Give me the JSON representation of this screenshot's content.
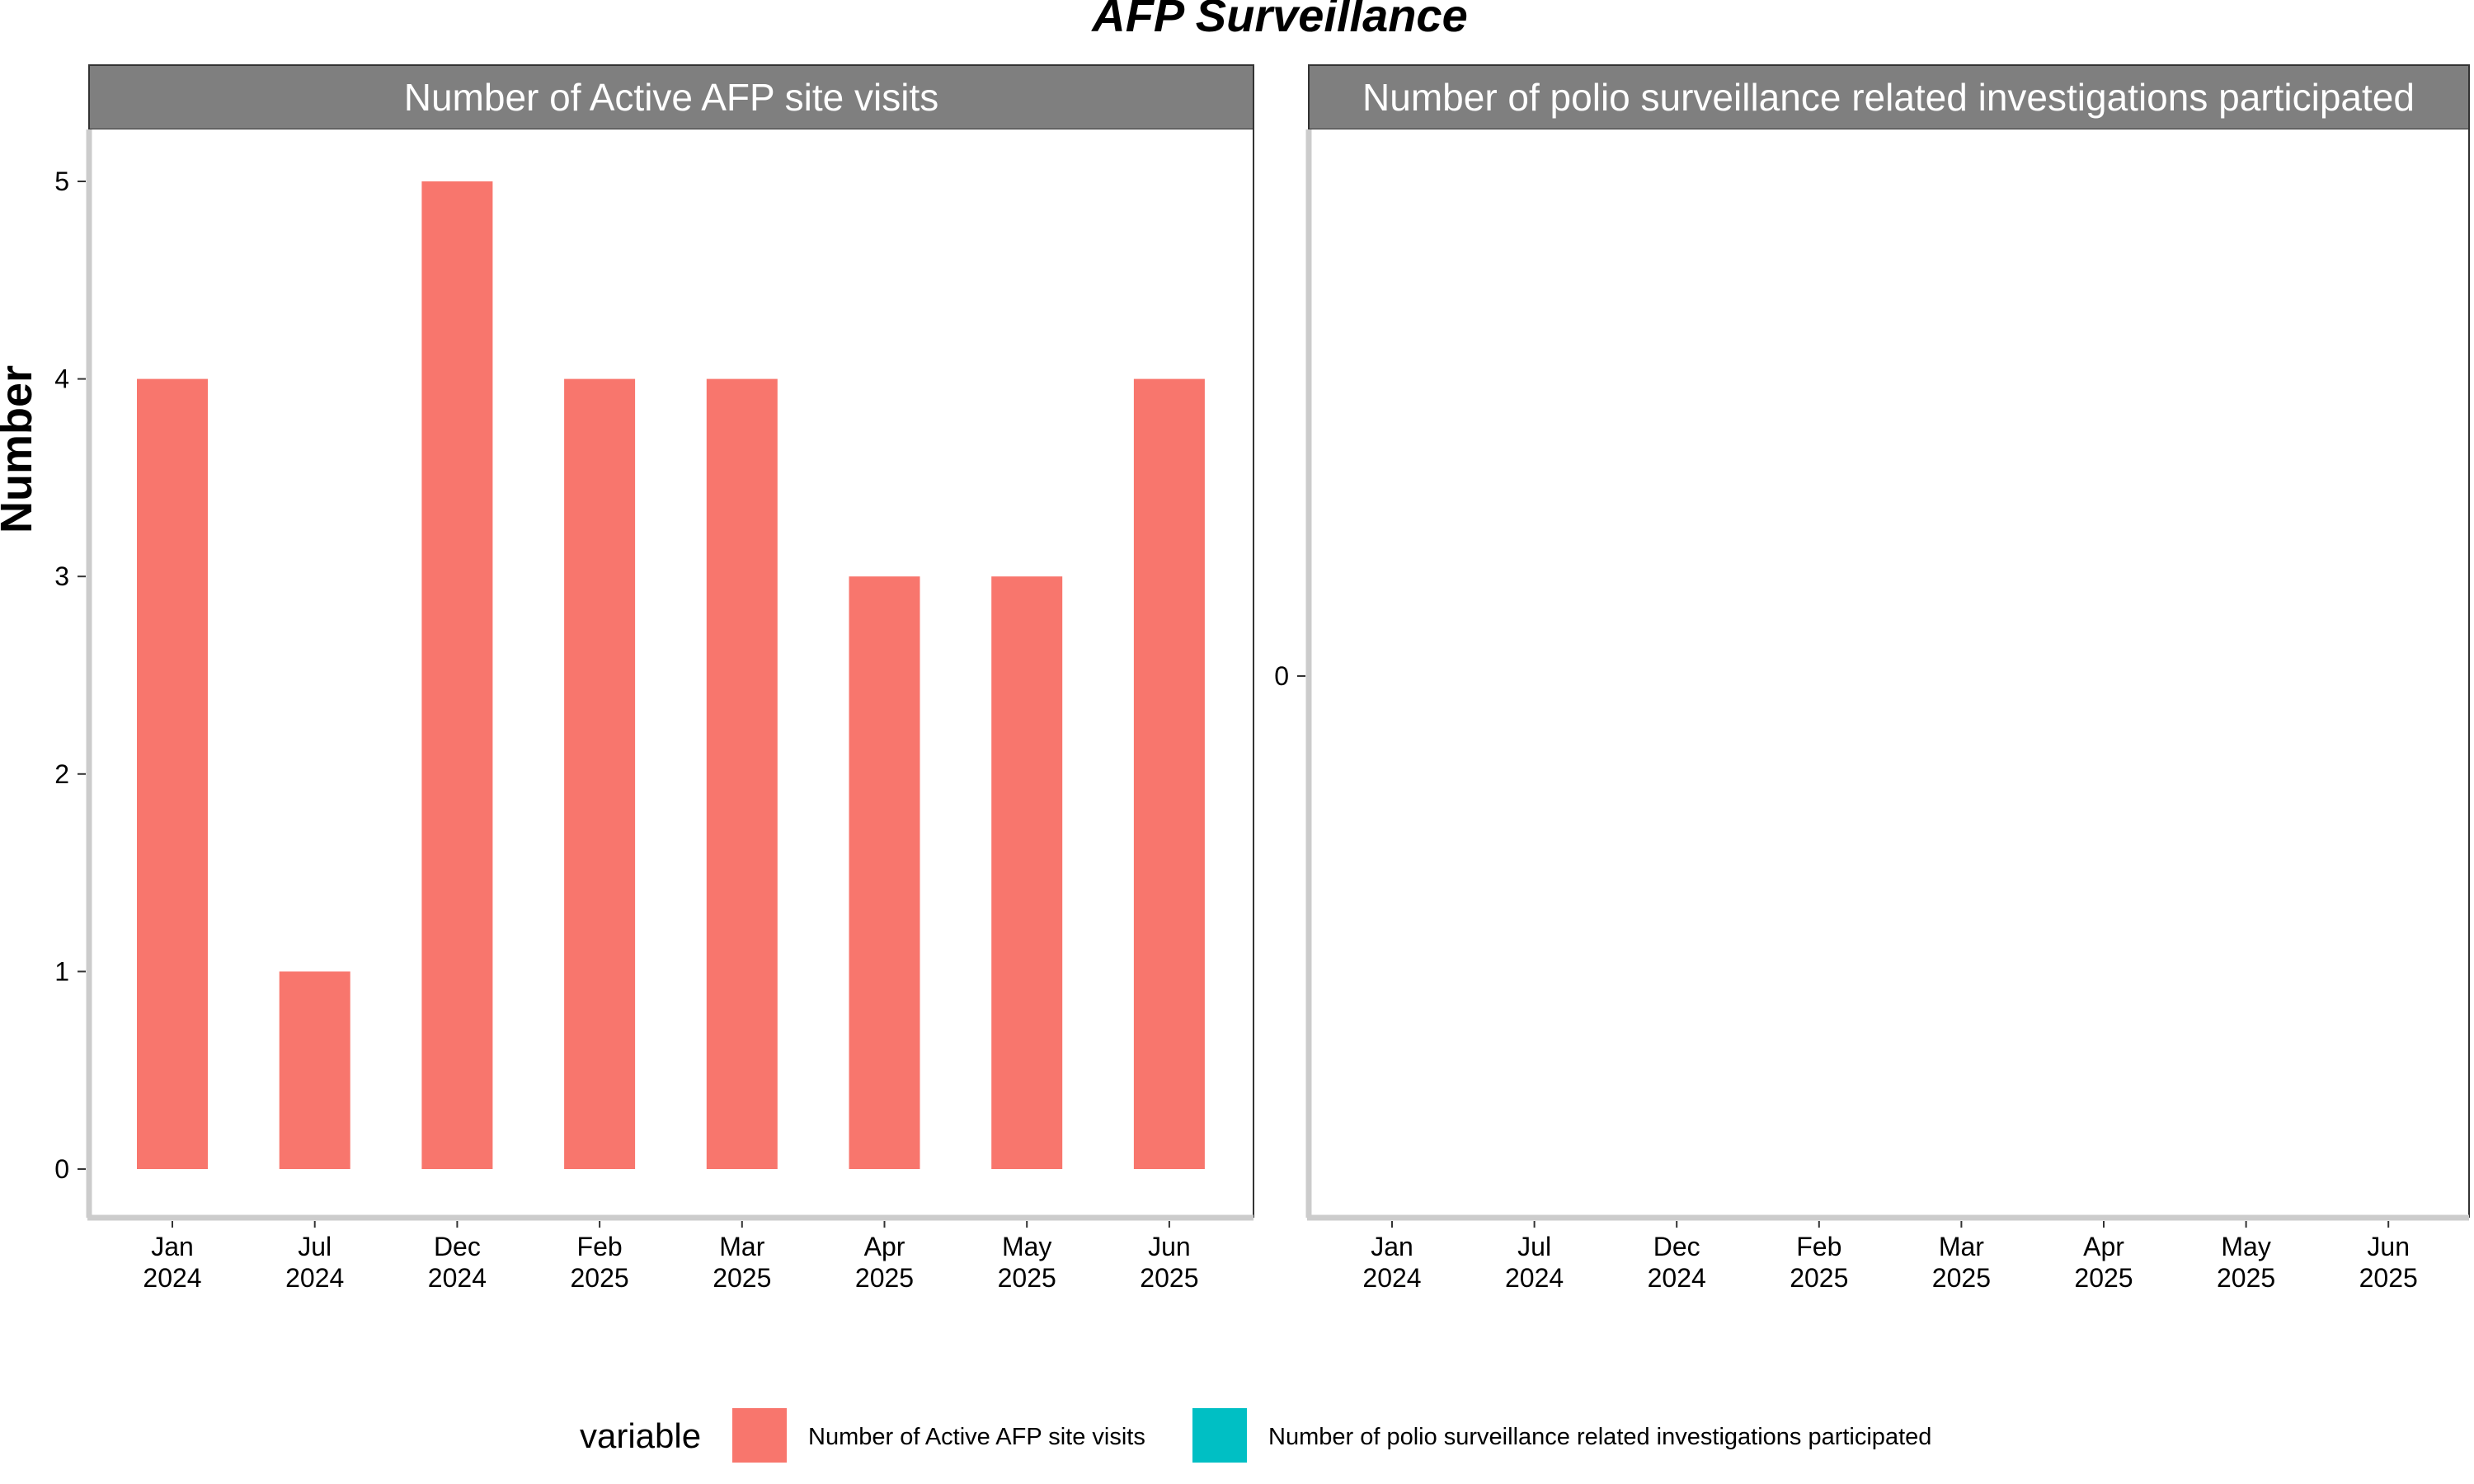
{
  "chart_data": {
    "type": "bar",
    "title": "AFP Surveillance",
    "ylabel": "Number",
    "categories": [
      "Jan\n2024",
      "Jul\n2024",
      "Dec\n2024",
      "Feb\n2025",
      "Mar\n2025",
      "Apr\n2025",
      "May\n2025",
      "Jun\n2025"
    ],
    "facets": [
      {
        "strip": "Number of Active AFP site visits",
        "ylim": [
          0,
          5
        ],
        "yticks": [
          0,
          1,
          2,
          3,
          4,
          5
        ],
        "values": [
          4,
          1,
          5,
          4,
          4,
          3,
          3,
          4
        ]
      },
      {
        "strip": "Number of polio surveillance related investigations participated",
        "yticks": [
          0
        ],
        "values": []
      }
    ],
    "legend": {
      "title": "variable",
      "position": "bottom",
      "items": [
        {
          "label": "Number of Active AFP site visits",
          "color": "#F8766D"
        },
        {
          "label": "Number of polio surveillance related investigations participated",
          "color": "#00BFC4"
        }
      ]
    },
    "grid": false
  }
}
